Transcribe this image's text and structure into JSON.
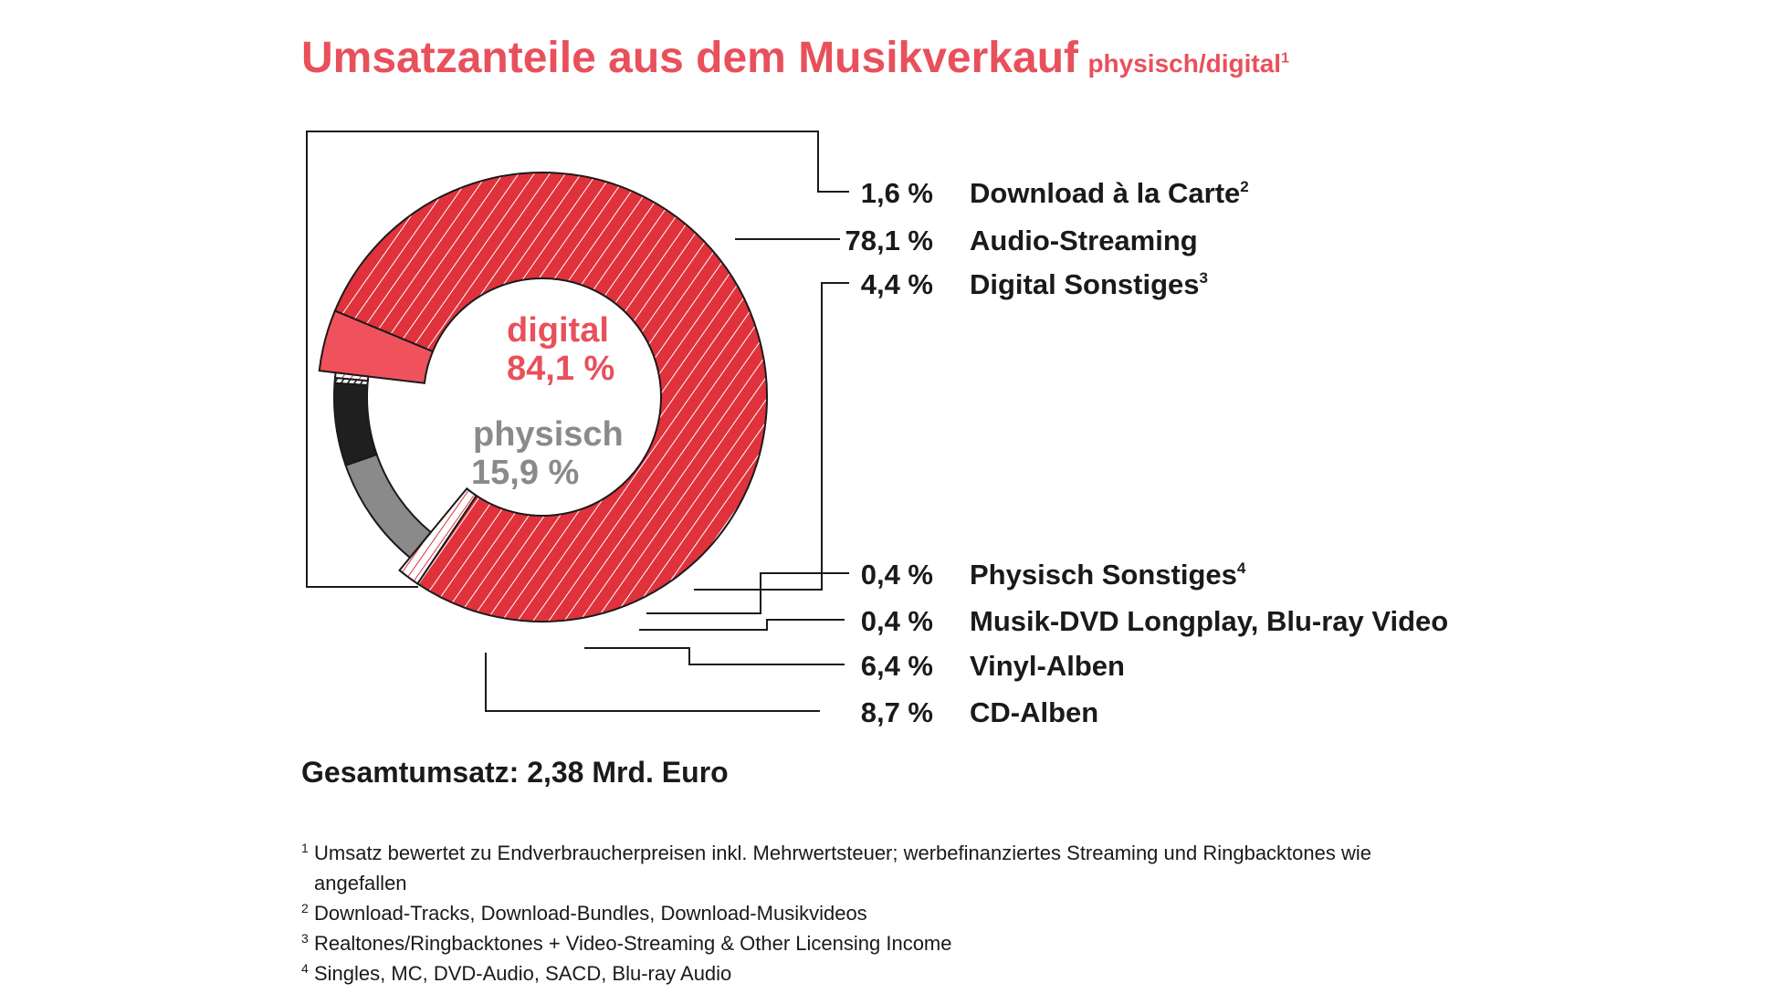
{
  "title": {
    "main": "Umsatzanteile aus dem Musikverkauf",
    "sub": "physisch/digital",
    "sub_note": "1"
  },
  "chart_data": {
    "type": "donut",
    "unit": "%",
    "groups": [
      {
        "label": "digital",
        "value_label": "84,1 %",
        "value": 84.1,
        "color": "#e8505b"
      },
      {
        "label": "physisch",
        "value_label": "15,9 %",
        "value": 15.9,
        "color": "#8a8a8a"
      }
    ],
    "series": [
      {
        "name": "Download à la Carte",
        "note": "2",
        "value": 1.6,
        "value_label": "1,6 %",
        "group": "digital",
        "fill": "#ffffff",
        "hatch": true
      },
      {
        "name": "Audio-Streaming",
        "note": "",
        "value": 78.1,
        "value_label": "78,1 %",
        "group": "digital",
        "fill": "#e0323c",
        "hatch": true
      },
      {
        "name": "Digital Sonstiges",
        "note": "3",
        "value": 4.4,
        "value_label": "4,4 %",
        "group": "digital",
        "fill": "#f0525d",
        "hatch": false
      },
      {
        "name": "Physisch Sonstiges",
        "note": "4",
        "value": 0.4,
        "value_label": "0,4 %",
        "group": "physisch",
        "fill": "#ffffff",
        "hatch": true
      },
      {
        "name": "Musik-DVD Longplay, Blu-ray Video",
        "note": "",
        "value": 0.4,
        "value_label": "0,4 %",
        "group": "physisch",
        "fill": "#1a1a1a",
        "hatch": true
      },
      {
        "name": "Vinyl-Alben",
        "note": "",
        "value": 6.4,
        "value_label": "6,4 %",
        "group": "physisch",
        "fill": "#1f1f1f",
        "hatch": false
      },
      {
        "name": "CD-Alben",
        "note": "",
        "value": 8.7,
        "value_label": "8,7 %",
        "group": "physisch",
        "fill": "#8a8a8a",
        "hatch": false
      }
    ]
  },
  "total": "Gesamtumsatz: 2,38 Mrd. Euro",
  "footnotes": [
    {
      "num": "1",
      "text": "Umsatz bewertet zu Endverbraucherpreisen inkl. Mehrwertsteuer; werbefinanziertes Streaming und Ringbacktones wie angefallen"
    },
    {
      "num": "2",
      "text": "Download-Tracks, Download-Bundles, Download-Musikvideos"
    },
    {
      "num": "3",
      "text": "Realtones/Ringbacktones + Video-Streaming & Other Licensing Income"
    },
    {
      "num": "4",
      "text": "Singles, MC, DVD-Audio, SACD, Blu-ray Audio"
    }
  ],
  "colors": {
    "accent": "#e8505b",
    "streaming": "#e0323c",
    "physical_grey": "#8a8a8a",
    "text": "#1a1a1a"
  }
}
